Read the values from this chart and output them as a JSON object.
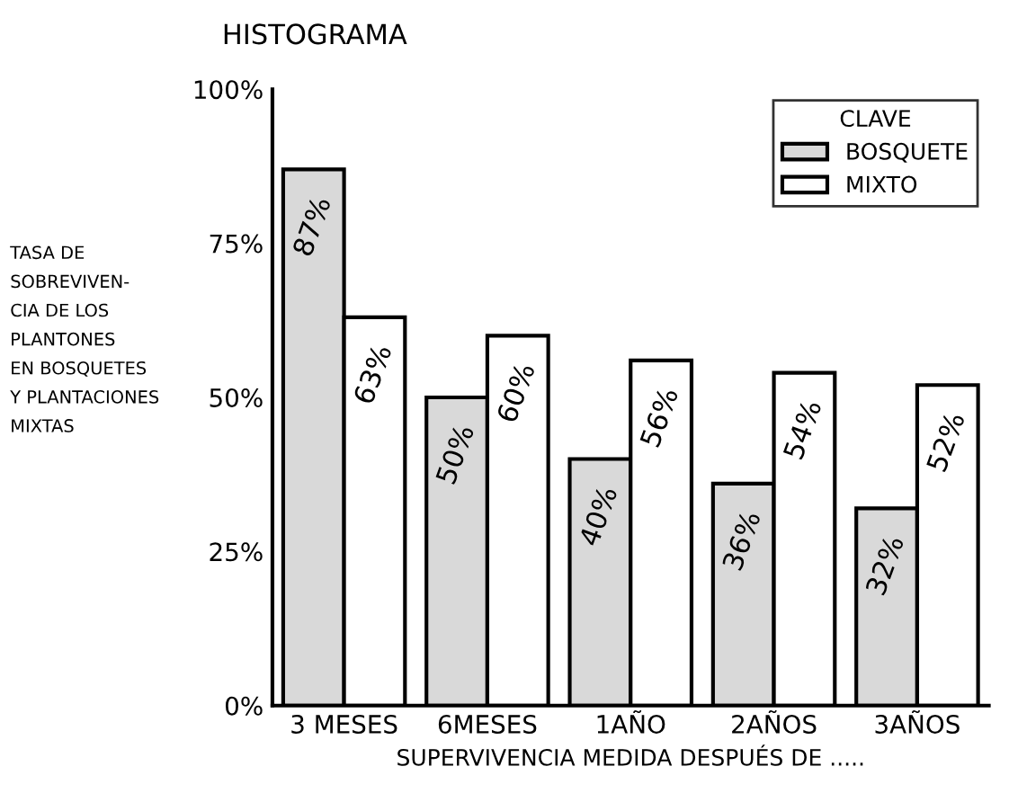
{
  "chart_data": {
    "type": "bar",
    "title": "HISTOGRAMA",
    "ylabel": "TASA DE\nSOBREVIVEN-\nCIA DE LOS\nPLANTONES\nEN BOSQUETES\nY PLANTACIONES\nMIXTAS",
    "xlabel": "SUPERVIVENCIA MEDIDA DESPUÉS DE .....",
    "legend_title": "CLAVE",
    "categories": [
      "3 MESES",
      "6MESES",
      "1AÑO",
      "2AÑOS",
      "3AÑOS"
    ],
    "series": [
      {
        "name": "BOSQUETE",
        "color": "#d9d9d9",
        "values": [
          87,
          50,
          40,
          36,
          32
        ],
        "value_labels": [
          "87%",
          "50%",
          "40%",
          "36%",
          "32%"
        ]
      },
      {
        "name": "MIXTO",
        "color": "#ffffff",
        "values": [
          63,
          60,
          56,
          54,
          52
        ],
        "value_labels": [
          "63%",
          "60%",
          "56%",
          "54%",
          "52%"
        ]
      }
    ],
    "ylim": [
      0,
      100
    ],
    "yticks": [
      {
        "value": 0,
        "label": "0%"
      },
      {
        "value": 25,
        "label": "25%"
      },
      {
        "value": 50,
        "label": "50%"
      },
      {
        "value": 75,
        "label": "75%"
      },
      {
        "value": 100,
        "label": "100%"
      }
    ],
    "legend": "top right",
    "grid": false
  }
}
